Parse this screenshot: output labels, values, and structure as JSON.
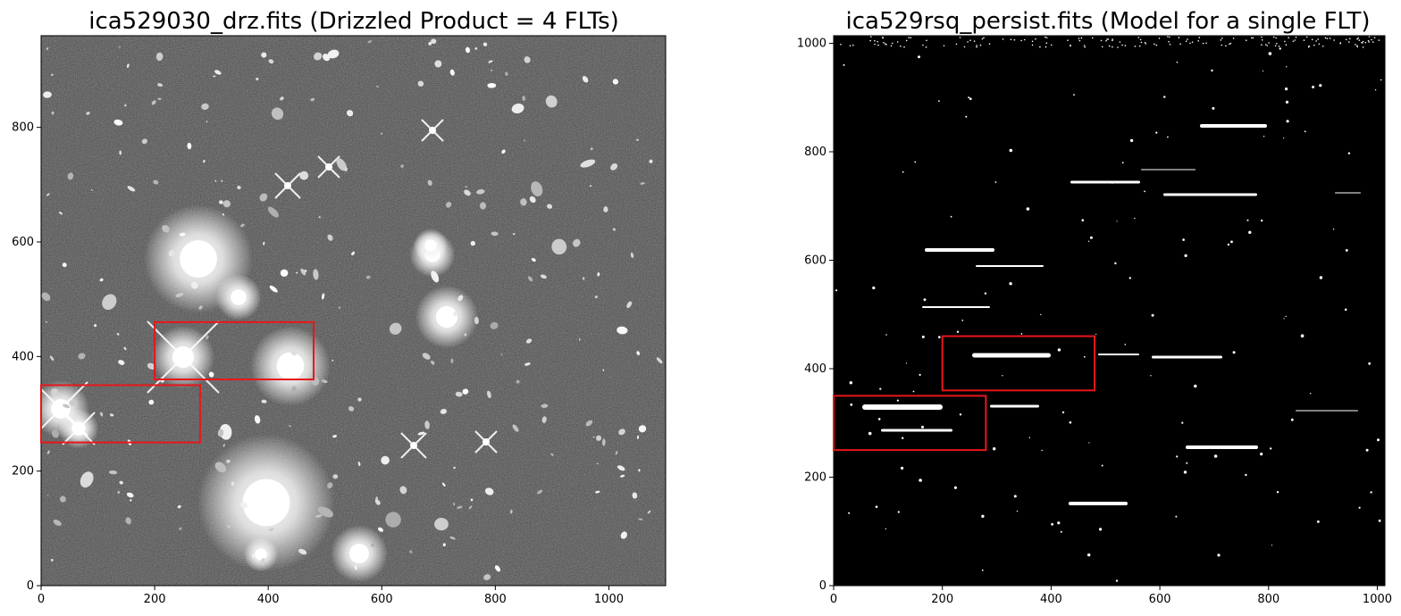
{
  "figure": {
    "background": "#ffffff",
    "box_color": "#e8161a",
    "frame_color": "#000000"
  },
  "panels": [
    {
      "title": "ica529030_drz.fits (Drizzled Product = 4 FLTs)",
      "image_kind": "grayscale deep-field drizzled image",
      "x_range": [
        0,
        1100
      ],
      "y_range": [
        0,
        960
      ],
      "x_ticks": [
        0,
        200,
        400,
        600,
        800,
        1000
      ],
      "y_ticks": [
        0,
        200,
        400,
        600,
        800
      ],
      "boxes": [
        {
          "x": 0,
          "y": 250,
          "w": 280,
          "h": 100
        },
        {
          "x": 200,
          "y": 360,
          "w": 280,
          "h": 100
        }
      ]
    },
    {
      "title": "ica529rsq_persist.fits (Model for a single FLT)",
      "image_kind": "binary persistence model (white streaks on black)",
      "x_range": [
        0,
        1014
      ],
      "y_range": [
        0,
        1014
      ],
      "x_ticks": [
        0,
        200,
        400,
        600,
        800,
        1000
      ],
      "y_ticks": [
        0,
        200,
        400,
        600,
        800,
        1000
      ],
      "boxes": [
        {
          "x": 0,
          "y": 250,
          "w": 280,
          "h": 100
        },
        {
          "x": 200,
          "y": 360,
          "w": 280,
          "h": 100
        }
      ]
    }
  ]
}
